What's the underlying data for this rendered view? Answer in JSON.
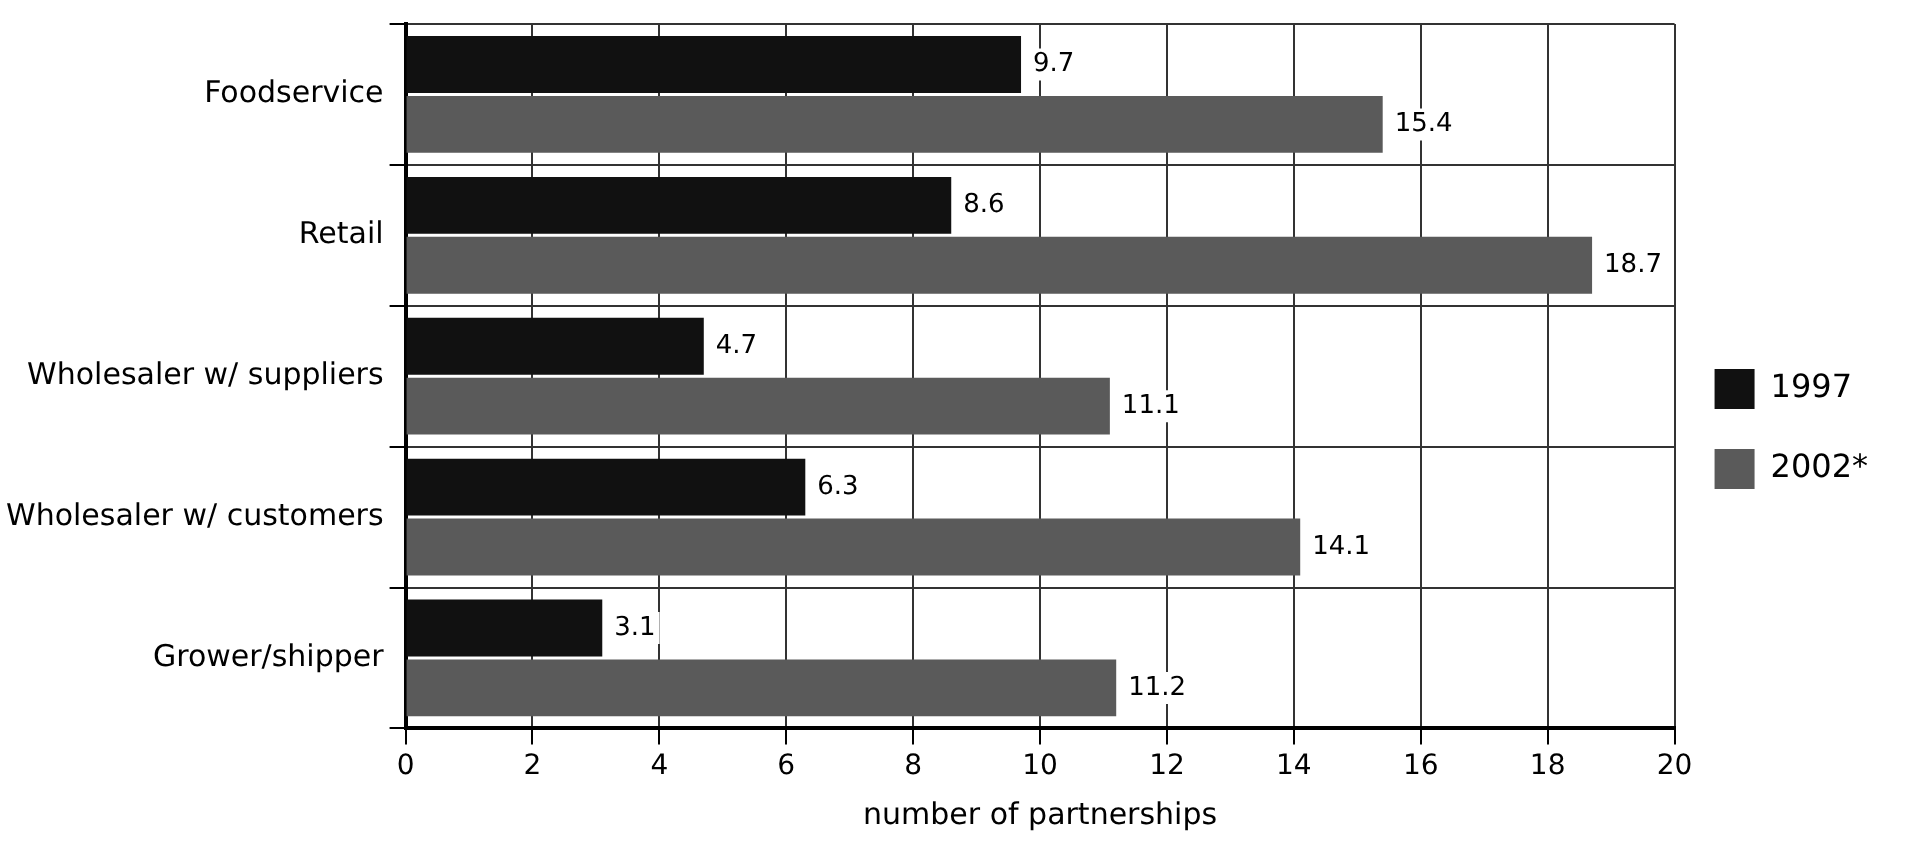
{
  "chart_data": {
    "type": "bar",
    "orientation": "horizontal",
    "xlabel": "number of partnerships",
    "categories": [
      "Foodservice",
      "Retail",
      "Wholesaler w/ suppliers",
      "Wholesaler w/ customers",
      "Grower/shipper"
    ],
    "series": [
      {
        "name": "1997",
        "color": "#111111",
        "values": [
          9.7,
          8.6,
          4.7,
          6.3,
          3.1
        ]
      },
      {
        "name": "2002*",
        "color": "#5a5a5a",
        "values": [
          15.4,
          18.7,
          11.1,
          14.1,
          11.2
        ]
      }
    ],
    "xlim": [
      0,
      20
    ],
    "xticks": [
      0,
      2,
      4,
      6,
      8,
      10,
      12,
      14,
      16,
      18,
      20
    ],
    "grid": true,
    "legend": "right",
    "data_labels": true
  }
}
